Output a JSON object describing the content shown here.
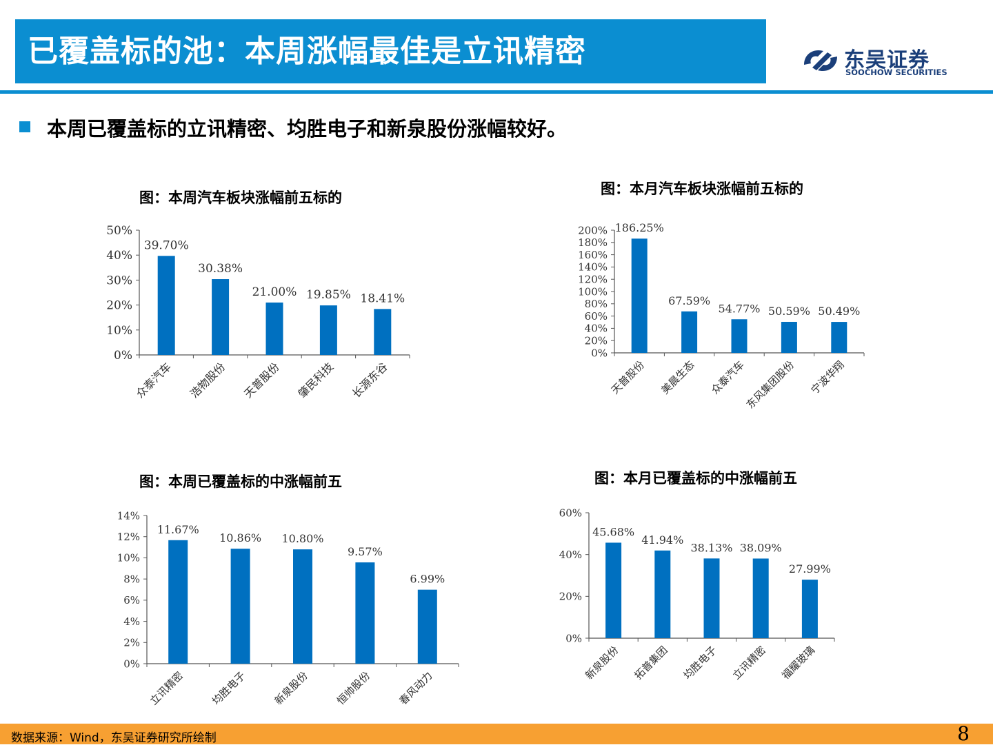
{
  "header": {
    "title": "已覆盖标的池：本周涨幅最佳是立讯精密"
  },
  "logo": {
    "name_cn": "东吴证券",
    "name_en": "SOOCHOW SECURITIES"
  },
  "subtitle": "本周已覆盖标的立讯精密、均胜电子和新泉股份涨幅较好。",
  "footer": {
    "source": "数据来源：Wind，东吴证券研究所绘制",
    "page": "8"
  },
  "colors": {
    "accent": "#0B8ED1",
    "bar": "#0070C0",
    "footer": "#F7A032"
  },
  "chart_data": [
    {
      "type": "bar",
      "title": "图：本周汽车板块涨幅前五标的",
      "categories": [
        "众泰汽车",
        "浩物股份",
        "天普股份",
        "肇民科技",
        "长源东谷"
      ],
      "values": [
        39.7,
        30.38,
        21.0,
        19.85,
        18.41
      ],
      "labels": [
        "39.70%",
        "30.38%",
        "21.00%",
        "19.85%",
        "18.41%"
      ],
      "ylim": [
        0,
        50
      ],
      "yticks": [
        "0%",
        "10%",
        "20%",
        "30%",
        "40%",
        "50%"
      ],
      "xlabel": "",
      "ylabel": ""
    },
    {
      "type": "bar",
      "title": "图：本月汽车板块涨幅前五标的",
      "categories": [
        "天普股份",
        "美晨生态",
        "众泰汽车",
        "东风集团股份",
        "宁波华翔"
      ],
      "values": [
        186.25,
        67.59,
        54.77,
        50.59,
        50.49
      ],
      "labels": [
        "186.25%",
        "67.59%",
        "54.77%",
        "50.59%",
        "50.49%"
      ],
      "ylim": [
        0,
        200
      ],
      "yticks": [
        "0%",
        "20%",
        "40%",
        "60%",
        "80%",
        "100%",
        "120%",
        "140%",
        "160%",
        "180%",
        "200%"
      ],
      "xlabel": "",
      "ylabel": ""
    },
    {
      "type": "bar",
      "title": "图：本周已覆盖标的中涨幅前五",
      "categories": [
        "立讯精密",
        "均胜电子",
        "新泉股份",
        "恒帅股份",
        "春风动力"
      ],
      "values": [
        11.67,
        10.86,
        10.8,
        9.57,
        6.99
      ],
      "labels": [
        "11.67%",
        "10.86%",
        "10.80%",
        "9.57%",
        "6.99%"
      ],
      "ylim": [
        0,
        14
      ],
      "yticks": [
        "0%",
        "2%",
        "4%",
        "6%",
        "8%",
        "10%",
        "12%",
        "14%"
      ],
      "xlabel": "",
      "ylabel": ""
    },
    {
      "type": "bar",
      "title": "图：本月已覆盖标的中涨幅前五",
      "categories": [
        "新泉股份",
        "拓普集团",
        "均胜电子",
        "立讯精密",
        "福耀玻璃"
      ],
      "values": [
        45.68,
        41.94,
        38.13,
        38.09,
        27.99
      ],
      "labels": [
        "45.68%",
        "41.94%",
        "38.13%",
        "38.09%",
        "27.99%"
      ],
      "ylim": [
        0,
        60
      ],
      "yticks": [
        "0%",
        "20%",
        "40%",
        "60%"
      ],
      "xlabel": "",
      "ylabel": ""
    }
  ]
}
